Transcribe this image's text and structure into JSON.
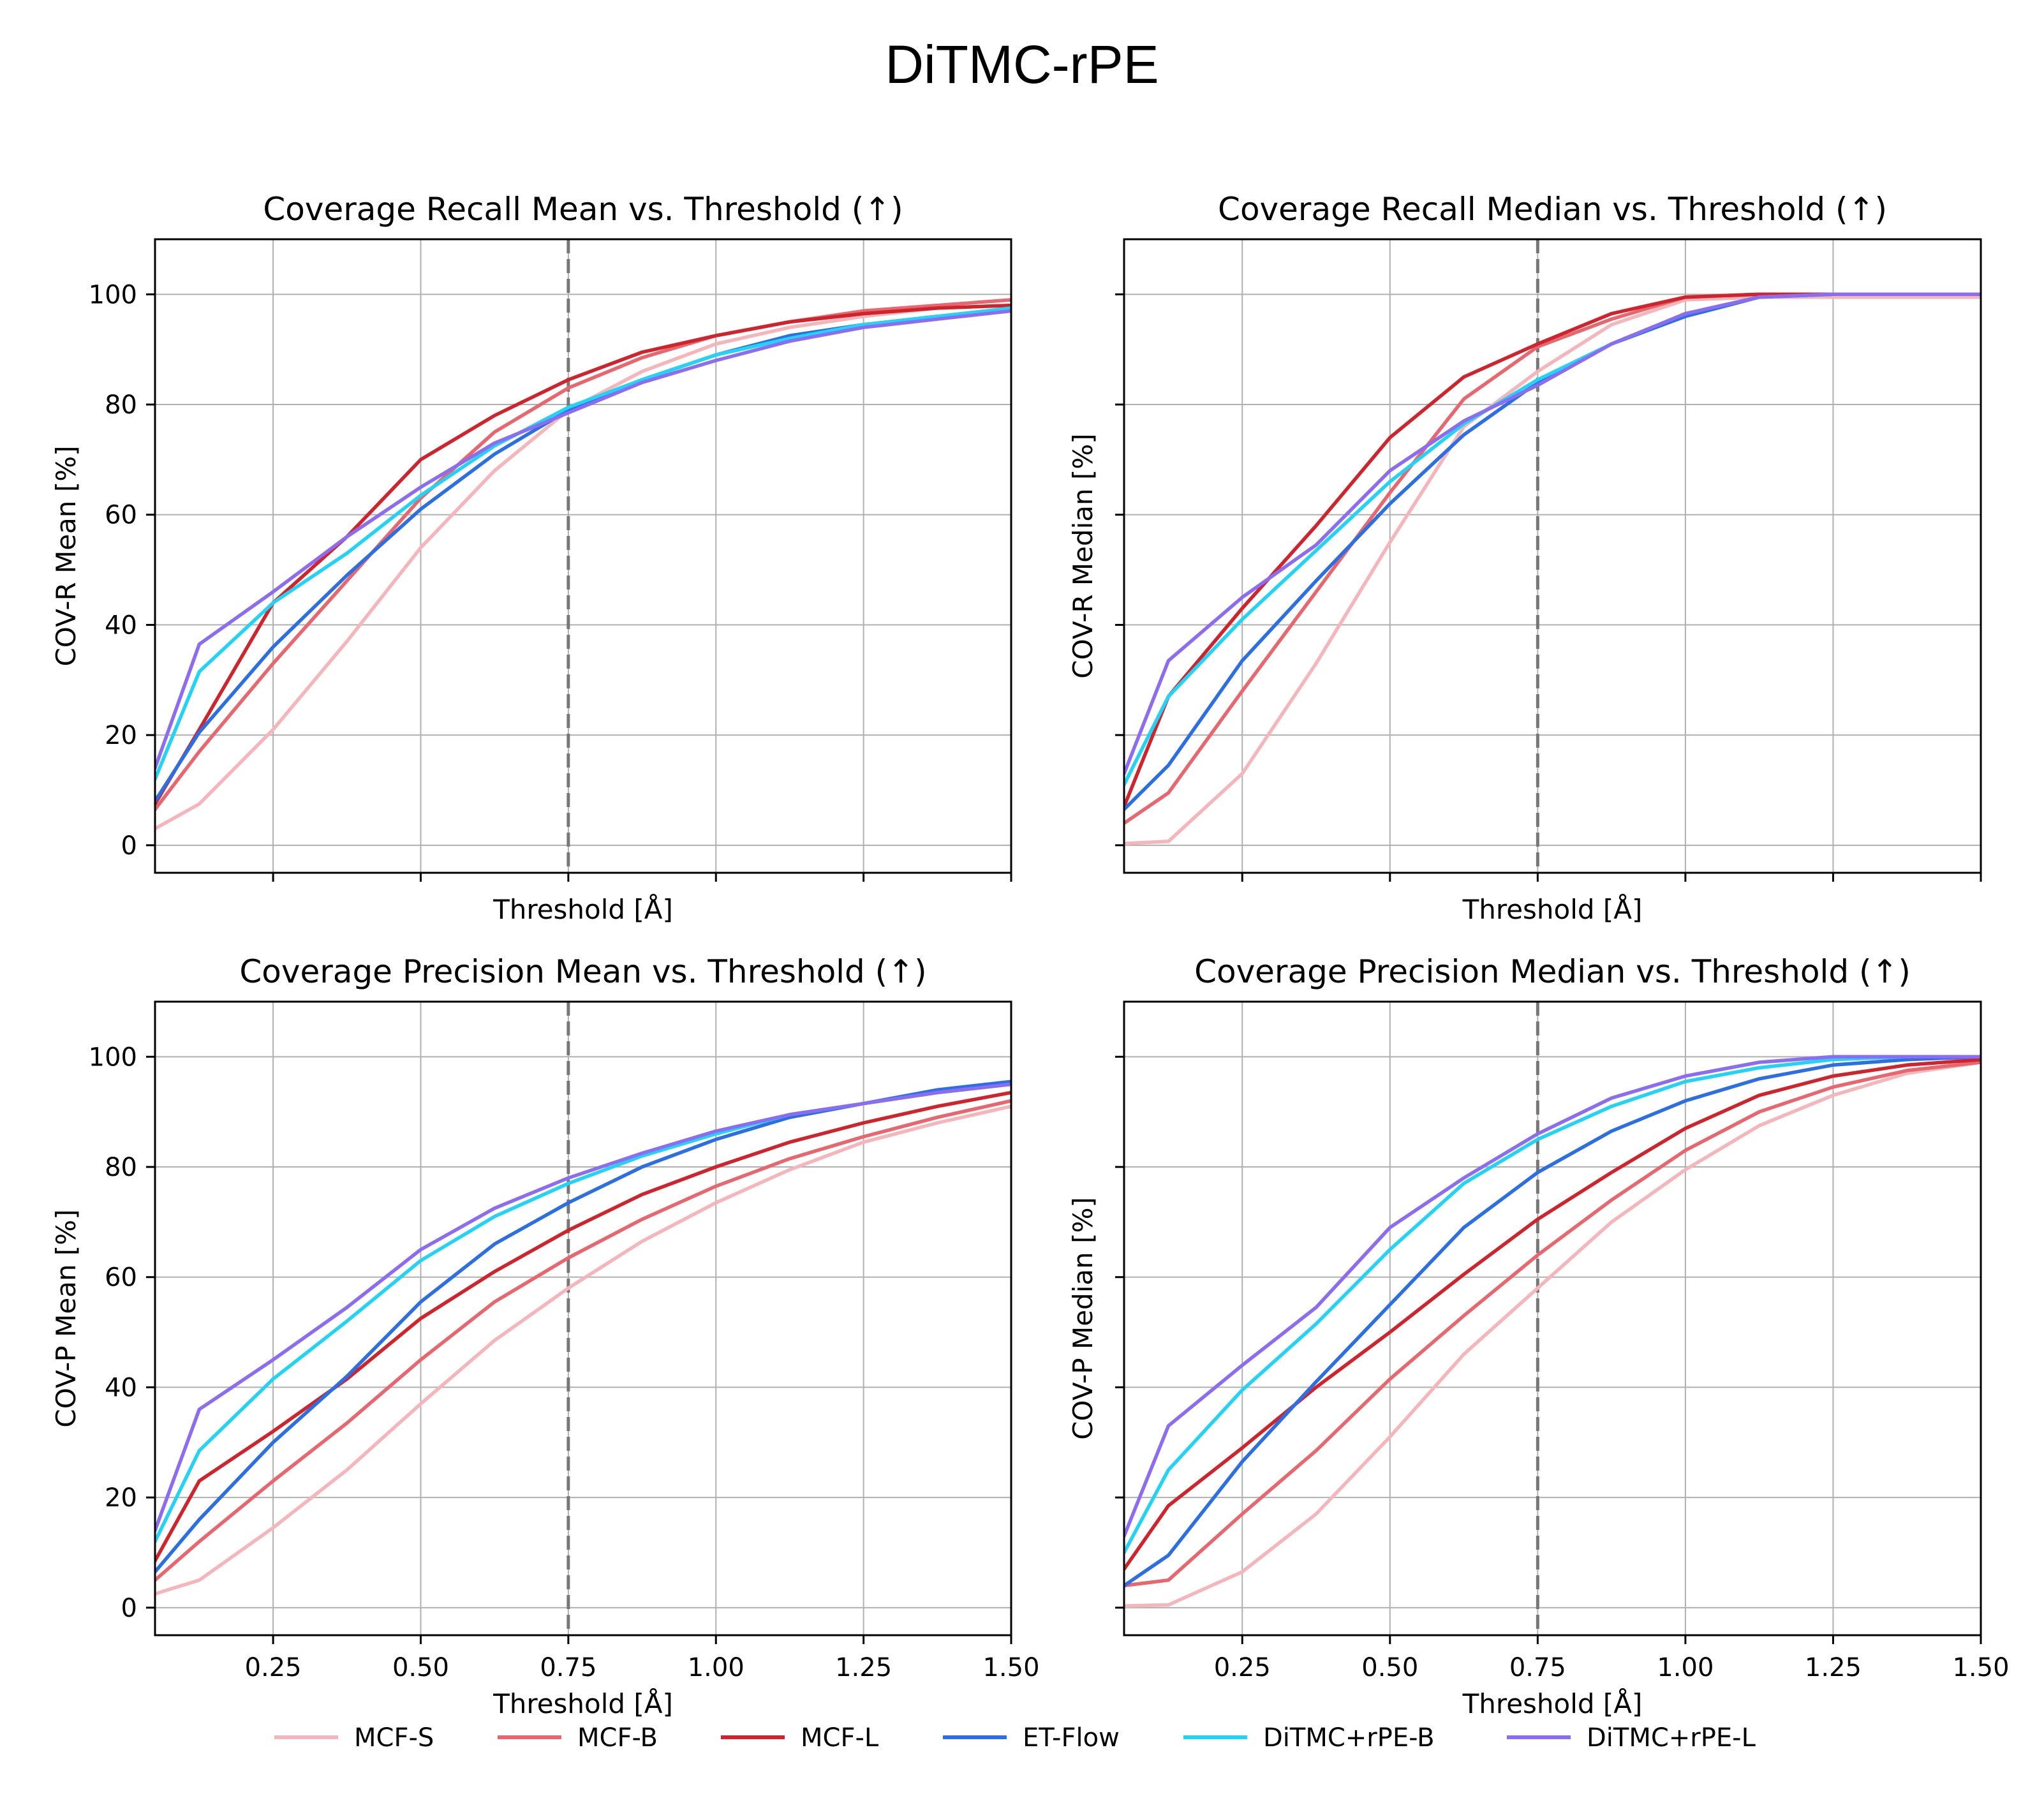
{
  "suptitle": "DiTMC-rPE",
  "colors": {
    "MCF-S": "#f4b6bb",
    "MCF-B": "#e8666e",
    "MCF-L": "#d0242d",
    "ET-Flow": "#2c6fe4",
    "DiTMC+rPE-B": "#23d3f5",
    "DiTMC+rPE-L": "#8c6cf0",
    "grid": "#b0b0b0",
    "vline": "#777777"
  },
  "legend": [
    "MCF-S",
    "MCF-B",
    "MCF-L",
    "ET-Flow",
    "DiTMC+rPE-B",
    "DiTMC+rPE-L"
  ],
  "chart_data": [
    {
      "type": "line",
      "title": "Coverage Recall Mean vs. Threshold (↑)",
      "xlabel": "Threshold [Å]",
      "ylabel": "COV-R Mean [%]",
      "xlim": [
        0.05,
        1.5
      ],
      "ylim": [
        -5,
        110
      ],
      "xticks": [
        "0.25",
        "0.50",
        "0.75",
        "1.00",
        "1.25",
        "1.50"
      ],
      "yticks": [
        "0",
        "20",
        "40",
        "60",
        "80",
        "100"
      ],
      "show_xticklabels": false,
      "show_yticklabels": true,
      "vline": 0.75,
      "grid": true,
      "x": [
        0.05,
        0.125,
        0.25,
        0.375,
        0.5,
        0.625,
        0.75,
        0.875,
        1.0,
        1.125,
        1.25,
        1.375,
        1.5
      ],
      "series": [
        {
          "name": "MCF-S",
          "values": [
            3,
            7.5,
            21,
            37,
            54,
            68,
            79,
            86,
            91,
            94,
            96,
            97.5,
            98
          ]
        },
        {
          "name": "MCF-B",
          "values": [
            6.5,
            17,
            33,
            48,
            63,
            75,
            83,
            88.5,
            92.5,
            95,
            97,
            98,
            99
          ]
        },
        {
          "name": "MCF-L",
          "values": [
            7.5,
            21,
            44,
            56,
            70,
            78,
            84.5,
            89.5,
            92.5,
            95,
            96.5,
            97.5,
            98
          ]
        },
        {
          "name": "ET-Flow",
          "values": [
            8,
            20.5,
            36,
            49,
            61,
            71,
            79,
            84.5,
            89,
            92.5,
            94.5,
            96,
            97
          ]
        },
        {
          "name": "DiTMC+rPE-B",
          "values": [
            12,
            31.5,
            44,
            53,
            63.5,
            72.5,
            79.5,
            84.5,
            89,
            92,
            94.5,
            96,
            97.5
          ]
        },
        {
          "name": "DiTMC+rPE-L",
          "values": [
            14,
            36.5,
            46,
            56,
            65,
            73,
            78.5,
            84,
            88,
            91.5,
            94,
            95.5,
            97
          ]
        }
      ]
    },
    {
      "type": "line",
      "title": "Coverage Recall Median vs. Threshold (↑)",
      "xlabel": "Threshold [Å]",
      "ylabel": "COV-R Median [%]",
      "xlim": [
        0.05,
        1.5
      ],
      "ylim": [
        -5,
        110
      ],
      "xticks": [
        "0.25",
        "0.50",
        "0.75",
        "1.00",
        "1.25",
        "1.50"
      ],
      "yticks": [
        "0",
        "20",
        "40",
        "60",
        "80",
        "100"
      ],
      "show_xticklabels": false,
      "show_yticklabels": false,
      "vline": 0.75,
      "grid": true,
      "x": [
        0.05,
        0.125,
        0.25,
        0.375,
        0.5,
        0.625,
        0.75,
        0.875,
        1.0,
        1.125,
        1.25,
        1.375,
        1.5
      ],
      "series": [
        {
          "name": "MCF-S",
          "values": [
            0.3,
            0.7,
            13,
            33,
            55,
            76,
            86,
            94.5,
            99,
            99.5,
            99.5,
            99.5,
            99.5
          ]
        },
        {
          "name": "MCF-B",
          "values": [
            4,
            9.5,
            28,
            46,
            64,
            81,
            90.5,
            95.5,
            99.5,
            100,
            100,
            100,
            100
          ]
        },
        {
          "name": "MCF-L",
          "values": [
            7,
            27,
            43,
            58,
            74,
            85,
            91,
            96.5,
            99.5,
            100,
            100,
            100,
            100
          ]
        },
        {
          "name": "ET-Flow",
          "values": [
            6.5,
            14.5,
            33.5,
            48,
            62,
            74.5,
            84,
            91,
            96,
            99.5,
            100,
            100,
            100
          ]
        },
        {
          "name": "DiTMC+rPE-B",
          "values": [
            11,
            27,
            41,
            53.5,
            66,
            76.5,
            84.5,
            91,
            96.5,
            99.5,
            100,
            100,
            100
          ]
        },
        {
          "name": "DiTMC+rPE-L",
          "values": [
            13,
            33.5,
            45,
            54.5,
            68,
            77,
            83.5,
            91,
            96.5,
            99.5,
            100,
            100,
            100
          ]
        }
      ]
    },
    {
      "type": "line",
      "title": "Coverage Precision Mean vs. Threshold (↑)",
      "xlabel": "Threshold [Å]",
      "ylabel": "COV-P Mean [%]",
      "xlim": [
        0.05,
        1.5
      ],
      "ylim": [
        -5,
        110
      ],
      "xticks": [
        "0.25",
        "0.50",
        "0.75",
        "1.00",
        "1.25",
        "1.50"
      ],
      "yticks": [
        "0",
        "20",
        "40",
        "60",
        "80",
        "100"
      ],
      "show_xticklabels": true,
      "show_yticklabels": true,
      "vline": 0.75,
      "grid": true,
      "x": [
        0.05,
        0.125,
        0.25,
        0.375,
        0.5,
        0.625,
        0.75,
        0.875,
        1.0,
        1.125,
        1.25,
        1.375,
        1.5
      ],
      "series": [
        {
          "name": "MCF-S",
          "values": [
            2.5,
            5,
            14.5,
            25,
            37,
            48.5,
            58,
            66.5,
            73.5,
            79.5,
            84.5,
            88,
            91
          ]
        },
        {
          "name": "MCF-B",
          "values": [
            5,
            12,
            23,
            33.5,
            45,
            55.5,
            63.5,
            70.5,
            76.5,
            81.5,
            85.5,
            89,
            92
          ]
        },
        {
          "name": "MCF-L",
          "values": [
            8.5,
            23,
            32,
            41.5,
            52.5,
            61,
            68.5,
            75,
            80,
            84.5,
            88,
            91,
            93.5
          ]
        },
        {
          "name": "ET-Flow",
          "values": [
            6.5,
            16,
            30,
            42,
            55.5,
            66,
            73.5,
            80,
            85,
            89,
            91.5,
            94,
            95.5
          ]
        },
        {
          "name": "DiTMC+rPE-B",
          "values": [
            12,
            28.5,
            41.5,
            52,
            63,
            71,
            77,
            82,
            86,
            89.5,
            91.5,
            93.5,
            95
          ]
        },
        {
          "name": "DiTMC+rPE-L",
          "values": [
            14,
            36,
            45,
            54.5,
            65,
            72.5,
            78,
            82.5,
            86.5,
            89.5,
            91.5,
            93.5,
            95
          ]
        }
      ]
    },
    {
      "type": "line",
      "title": "Coverage Precision Median vs. Threshold (↑)",
      "xlabel": "Threshold [Å]",
      "ylabel": "COV-P Median [%]",
      "xlim": [
        0.05,
        1.5
      ],
      "ylim": [
        -5,
        110
      ],
      "xticks": [
        "0.25",
        "0.50",
        "0.75",
        "1.00",
        "1.25",
        "1.50"
      ],
      "yticks": [
        "0",
        "20",
        "40",
        "60",
        "80",
        "100"
      ],
      "show_xticklabels": true,
      "show_yticklabels": false,
      "vline": 0.75,
      "grid": true,
      "x": [
        0.05,
        0.125,
        0.25,
        0.375,
        0.5,
        0.625,
        0.75,
        0.875,
        1.0,
        1.125,
        1.25,
        1.375,
        1.5
      ],
      "series": [
        {
          "name": "MCF-S",
          "values": [
            0.3,
            0.5,
            6.5,
            17,
            31,
            46,
            58,
            70,
            79.5,
            87.5,
            93,
            97,
            99
          ]
        },
        {
          "name": "MCF-B",
          "values": [
            4,
            5,
            17,
            28.5,
            41.5,
            53,
            64,
            74,
            83,
            90,
            94.5,
            97.5,
            99
          ]
        },
        {
          "name": "MCF-L",
          "values": [
            7,
            18.5,
            29,
            40,
            50,
            60.5,
            70.5,
            79,
            87,
            93,
            96.5,
            98.5,
            99.5
          ]
        },
        {
          "name": "ET-Flow",
          "values": [
            4,
            9.5,
            26.5,
            41,
            55,
            69,
            79,
            86.5,
            92,
            96,
            98.5,
            99.5,
            100
          ]
        },
        {
          "name": "DiTMC+rPE-B",
          "values": [
            10,
            25,
            39.5,
            51.5,
            65,
            77,
            85,
            91,
            95.5,
            98,
            99.5,
            100,
            100
          ]
        },
        {
          "name": "DiTMC+rPE-L",
          "values": [
            13,
            33,
            44,
            54.5,
            69,
            78,
            86,
            92.5,
            96.5,
            99,
            100,
            100,
            100
          ]
        }
      ]
    }
  ]
}
